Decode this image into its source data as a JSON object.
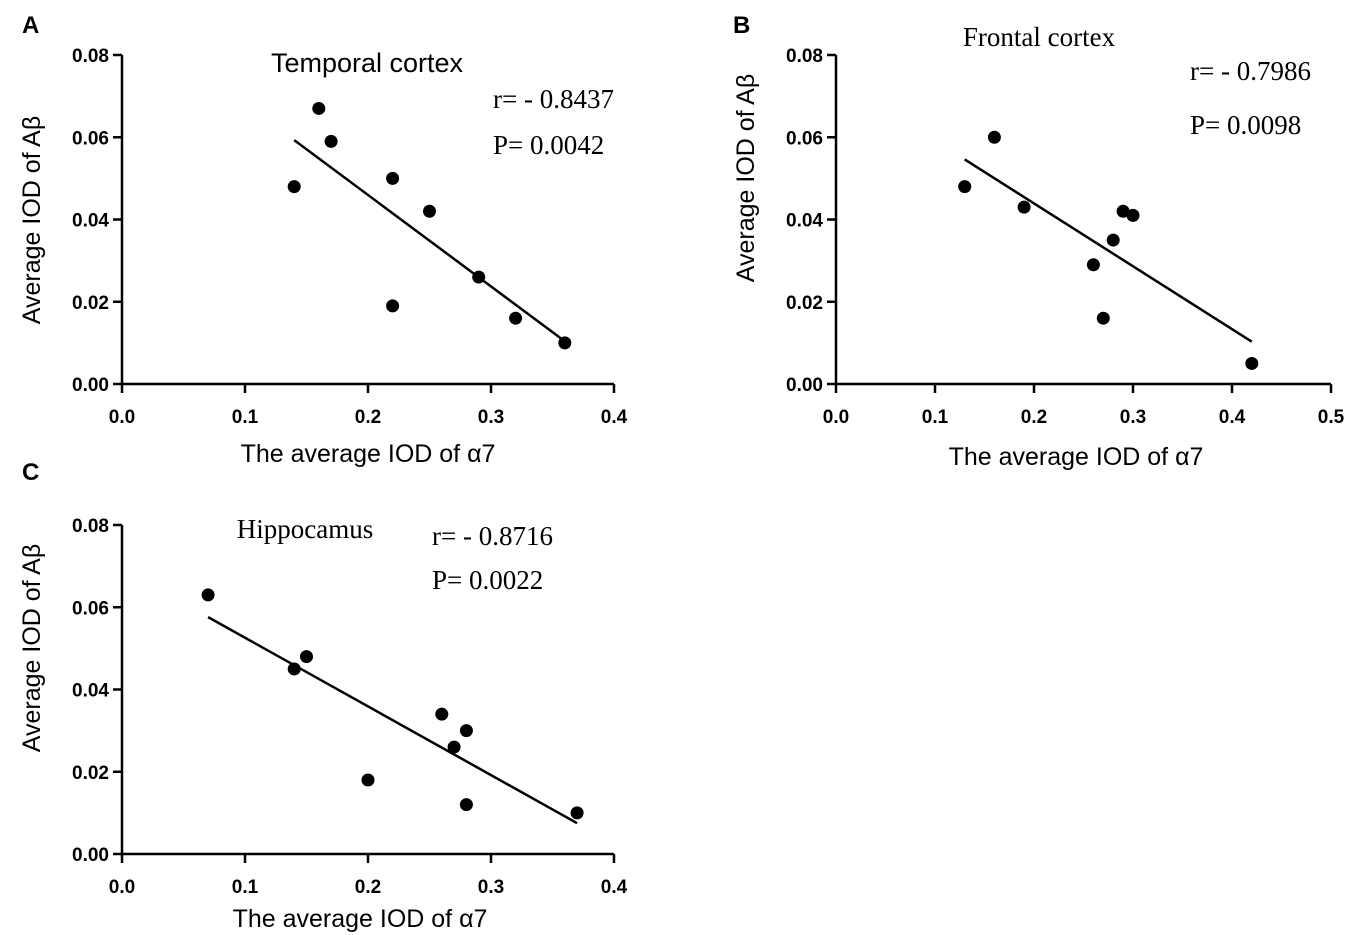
{
  "figure": {
    "colors": {
      "ink": "#000000",
      "background": "#ffffff"
    }
  },
  "chart_data": [
    {
      "panel": "A",
      "type": "scatter",
      "title": "Temporal cortex",
      "xlabel": "The average IOD of α7",
      "ylabel": "Average IOD of Aβ",
      "xlim": [
        0,
        0.4
      ],
      "ylim": [
        0,
        0.08
      ],
      "xticks": [
        "0.0",
        "0.1",
        "0.2",
        "0.3",
        "0.4"
      ],
      "yticks": [
        "0.00",
        "0.02",
        "0.04",
        "0.06",
        "0.08"
      ],
      "stats": [
        "r= - 0.8437",
        "P= 0.0042"
      ],
      "points": [
        {
          "x": 0.14,
          "y": 0.048
        },
        {
          "x": 0.16,
          "y": 0.067
        },
        {
          "x": 0.17,
          "y": 0.059
        },
        {
          "x": 0.22,
          "y": 0.05
        },
        {
          "x": 0.22,
          "y": 0.019
        },
        {
          "x": 0.25,
          "y": 0.042
        },
        {
          "x": 0.29,
          "y": 0.026
        },
        {
          "x": 0.32,
          "y": 0.016
        },
        {
          "x": 0.36,
          "y": 0.01
        }
      ],
      "fit": {
        "x": [
          0.14,
          0.36
        ],
        "y": [
          0.0593,
          0.0104
        ]
      },
      "grid": false
    },
    {
      "panel": "B",
      "type": "scatter",
      "title": "Frontal cortex",
      "xlabel": "The average IOD of α7",
      "ylabel": "Average IOD of Aβ",
      "xlim": [
        0,
        0.5
      ],
      "ylim": [
        0,
        0.08
      ],
      "xticks": [
        "0.0",
        "0.1",
        "0.2",
        "0.3",
        "0.4",
        "0.5"
      ],
      "yticks": [
        "0.00",
        "0.02",
        "0.04",
        "0.06",
        "0.08"
      ],
      "stats": [
        "r= - 0.7986",
        "P= 0.0098"
      ],
      "points": [
        {
          "x": 0.13,
          "y": 0.048
        },
        {
          "x": 0.16,
          "y": 0.06
        },
        {
          "x": 0.19,
          "y": 0.043
        },
        {
          "x": 0.26,
          "y": 0.029
        },
        {
          "x": 0.27,
          "y": 0.016
        },
        {
          "x": 0.28,
          "y": 0.035
        },
        {
          "x": 0.29,
          "y": 0.042
        },
        {
          "x": 0.3,
          "y": 0.041
        },
        {
          "x": 0.42,
          "y": 0.005
        }
      ],
      "fit": {
        "x": [
          0.13,
          0.42
        ],
        "y": [
          0.0546,
          0.0103
        ]
      },
      "grid": false
    },
    {
      "panel": "C",
      "type": "scatter",
      "title": "Hippocamus",
      "xlabel": "The average IOD of α7",
      "ylabel": "Average IOD of Aβ",
      "xlim": [
        0,
        0.4
      ],
      "ylim": [
        0,
        0.08
      ],
      "xticks": [
        "0.0",
        "0.1",
        "0.2",
        "0.3",
        "0.4"
      ],
      "yticks": [
        "0.00",
        "0.02",
        "0.04",
        "0.06",
        "0.08"
      ],
      "stats": [
        "r= - 0.8716",
        "P= 0.0022"
      ],
      "points": [
        {
          "x": 0.07,
          "y": 0.063
        },
        {
          "x": 0.14,
          "y": 0.045
        },
        {
          "x": 0.15,
          "y": 0.048
        },
        {
          "x": 0.2,
          "y": 0.018
        },
        {
          "x": 0.26,
          "y": 0.034
        },
        {
          "x": 0.27,
          "y": 0.026
        },
        {
          "x": 0.28,
          "y": 0.03
        },
        {
          "x": 0.28,
          "y": 0.012
        },
        {
          "x": 0.37,
          "y": 0.01
        }
      ],
      "fit": {
        "x": [
          0.07,
          0.37
        ],
        "y": [
          0.0576,
          0.0075
        ]
      },
      "grid": false
    }
  ]
}
